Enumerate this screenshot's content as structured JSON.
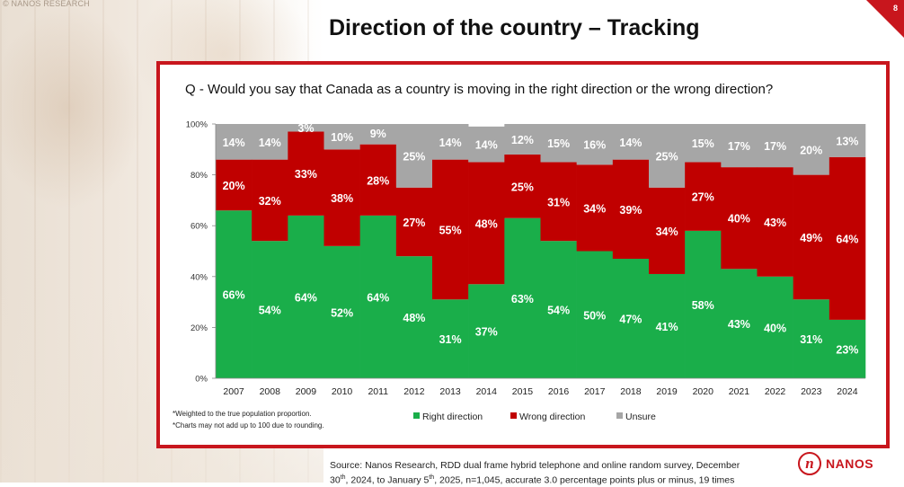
{
  "watermark": "© NANOS RESEARCH",
  "page_number": "8",
  "title": "Direction of the country – Tracking",
  "question": "Q - Would you say that Canada as a country is moving in the right direction or the wrong direction?",
  "notes": [
    "*Weighted to the true population proportion.",
    "*Charts may not add up to 100 due to rounding."
  ],
  "source": {
    "line1": "Source: Nanos Research, RDD dual frame hybrid  telephone and online random survey, December",
    "line2_a": "30",
    "line2_sup1": "th",
    "line2_b": ", 2024, to January 5",
    "line2_sup2": "th",
    "line2_c": ", 2025, n=1,045, accurate 3.0 percentage points plus or minus, 19 times"
  },
  "logo": {
    "mark": "n",
    "word": "NANOS"
  },
  "colors": {
    "right": "#1aae4a",
    "wrong": "#c00000",
    "unsure": "#a6a6a6",
    "accent": "#c8161d"
  },
  "chart_data": {
    "type": "bar",
    "stacked": true,
    "categories": [
      "2007",
      "2008",
      "2009",
      "2010",
      "2011",
      "2012",
      "2013",
      "2014",
      "2015",
      "2016",
      "2017",
      "2018",
      "2019",
      "2020",
      "2021",
      "2022",
      "2023",
      "2024"
    ],
    "series": [
      {
        "name": "Right direction",
        "values": [
          66,
          54,
          64,
          52,
          64,
          48,
          31,
          37,
          63,
          54,
          50,
          47,
          41,
          58,
          43,
          40,
          31,
          23
        ]
      },
      {
        "name": "Wrong direction",
        "values": [
          20,
          32,
          33,
          38,
          28,
          27,
          55,
          48,
          25,
          31,
          34,
          39,
          34,
          27,
          40,
          43,
          49,
          64
        ]
      },
      {
        "name": "Unsure",
        "values": [
          14,
          14,
          3,
          10,
          9,
          25,
          14,
          14,
          12,
          15,
          16,
          14,
          25,
          15,
          17,
          17,
          20,
          13
        ]
      }
    ],
    "ylim": [
      0,
      100
    ],
    "yticks": [
      "0%",
      "20%",
      "40%",
      "60%",
      "80%",
      "100%"
    ],
    "legend_position": "bottom",
    "xlabel": "",
    "ylabel": ""
  }
}
